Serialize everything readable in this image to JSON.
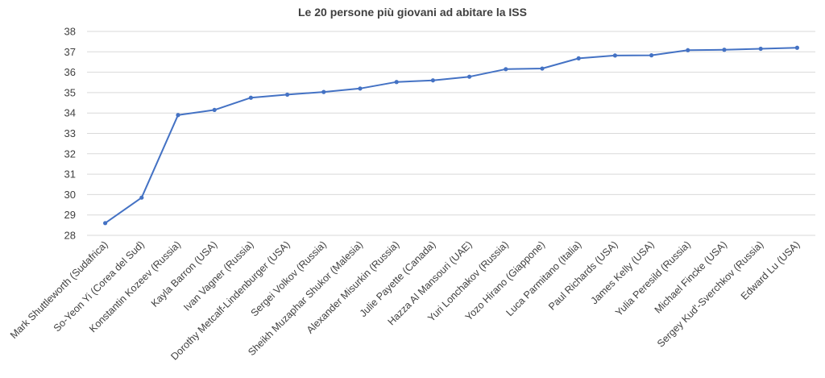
{
  "chart_data": {
    "type": "line",
    "title": "Le 20 persone più giovani ad abitare la ISS",
    "xlabel": "",
    "ylabel": "",
    "ylim": [
      28,
      38
    ],
    "yticks": [
      28,
      29,
      30,
      31,
      32,
      33,
      34,
      35,
      36,
      37,
      38
    ],
    "grid": true,
    "legend": "none",
    "line_color": "#4472C4",
    "categories": [
      "Mark Shuttleworth (Sudafrica)",
      "So-Yeon Yi (Corea del Sud)",
      "Konstantin Kozeev (Russia)",
      "Kayla Barron (USA)",
      "Ivan Vagner (Russia)",
      "Dorothy Metcalf-Lindenburger (USA)",
      "Sergei Volkov (Russia)",
      "Sheikh Muzaphar Shukor (Malesia)",
      "Alexander Misurkin (Russia)",
      "Julie Payette (Canada)",
      "Hazza Al Mansouri (UAE)",
      "Yuri Lonchakov (Russia)",
      "Yozo Hirano (Giappone)",
      "Luca Parmitano (Italia)",
      "Paul Richards (USA)",
      "James Kelly (USA)",
      "Yulia Peresild (Russia)",
      "Michael Fincke (USA)",
      "Sergey Kud'-Sverchkov (Russia)",
      "Edward Lu (USA)"
    ],
    "series": [
      {
        "values": [
          28.6,
          29.85,
          33.9,
          34.15,
          34.75,
          34.9,
          35.03,
          35.2,
          35.52,
          35.6,
          35.78,
          36.15,
          36.18,
          36.68,
          36.82,
          36.83,
          37.08,
          37.1,
          37.15,
          37.2
        ]
      }
    ]
  }
}
